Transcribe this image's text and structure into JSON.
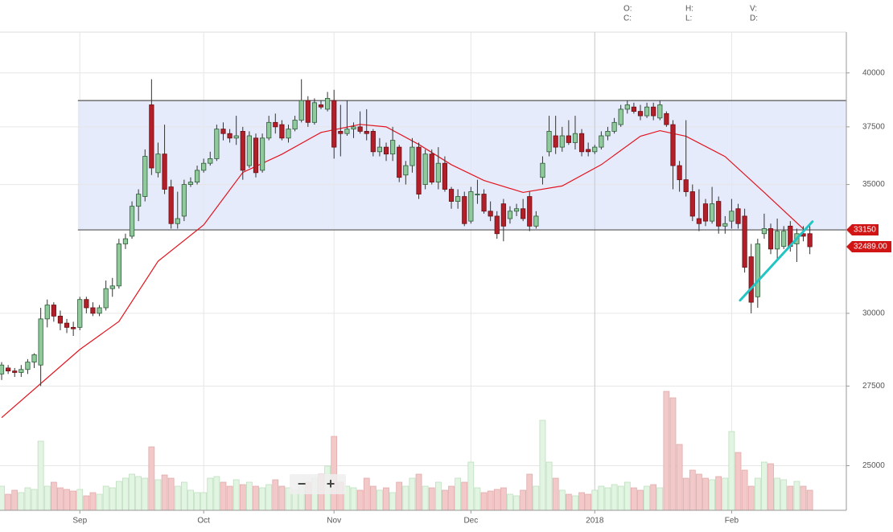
{
  "chart_data": {
    "type": "candlestick",
    "ohlc_header": [
      "O:",
      "H:",
      "V:",
      "C:",
      "L:",
      "D:"
    ],
    "zoom_controls": [
      "−",
      "+"
    ],
    "log_scale": true,
    "grid": true,
    "ylim": [
      23700,
      42000
    ],
    "yticks": [
      25000,
      27500,
      30000,
      35000,
      37500,
      40000
    ],
    "xlim": [
      -0.25,
      129.6
    ],
    "categories": [
      null,
      null,
      null,
      null,
      null,
      null,
      null,
      null,
      null,
      null,
      null,
      null,
      "Sep",
      null,
      null,
      null,
      null,
      null,
      null,
      null,
      null,
      null,
      null,
      null,
      null,
      null,
      null,
      null,
      null,
      null,
      null,
      "Oct",
      null,
      null,
      null,
      null,
      null,
      null,
      null,
      null,
      null,
      null,
      null,
      null,
      null,
      null,
      null,
      null,
      null,
      null,
      null,
      "Nov",
      null,
      null,
      null,
      null,
      null,
      null,
      null,
      null,
      null,
      null,
      null,
      null,
      null,
      null,
      null,
      null,
      null,
      null,
      null,
      null,
      "Dec",
      null,
      null,
      null,
      null,
      null,
      null,
      null,
      null,
      null,
      null,
      null,
      null,
      null,
      null,
      null,
      null,
      null,
      null,
      "2018",
      null,
      null,
      null,
      null,
      null,
      null,
      null,
      null,
      null,
      null,
      null,
      null,
      null,
      null,
      null,
      null,
      null,
      null,
      null,
      null,
      "Feb",
      null,
      null,
      null,
      null,
      null,
      null,
      null,
      null,
      null,
      null,
      null,
      null
    ],
    "open": [
      27900,
      28100,
      28000,
      27950,
      28050,
      28300,
      28200,
      29800,
      30300,
      29900,
      29650,
      29500,
      29500,
      30500,
      30200,
      30000,
      30200,
      30900,
      31000,
      32600,
      32900,
      34100,
      34500,
      38500,
      35500,
      36300,
      34900,
      33400,
      33700,
      35000,
      35100,
      35600,
      35900,
      36100,
      37400,
      37200,
      37000,
      37300,
      35800,
      37000,
      35600,
      37000,
      37700,
      37600,
      37000,
      37400,
      37800,
      38700,
      37700,
      38500,
      38300,
      38700,
      37300,
      37200,
      37400,
      37500,
      37300,
      37300,
      36400,
      36600,
      36300,
      36600,
      35400,
      35800,
      36600,
      35000,
      36300,
      35100,
      35900,
      34800,
      34300,
      34500,
      33500,
      34600,
      34600,
      33900,
      33700,
      34200,
      33600,
      33900,
      34000,
      34500,
      33300,
      35300,
      36400,
      37100,
      36600,
      37100,
      36800,
      37200,
      36500,
      36400,
      36600,
      37100,
      37300,
      37600,
      38300,
      38400,
      38200,
      38000,
      38400,
      37900,
      38100,
      37600,
      35800,
      35200,
      34700,
      33600,
      34200,
      33500,
      34300,
      33300,
      33500,
      34000,
      33700,
      32100,
      30600,
      33000,
      33200,
      32400,
      32500,
      33300,
      32600,
      33000,
      33000
    ],
    "high": [
      28300,
      28200,
      28100,
      28200,
      28400,
      28600,
      30200,
      30500,
      30400,
      30100,
      29800,
      29700,
      30600,
      30600,
      30400,
      30300,
      31200,
      31300,
      32800,
      33000,
      34300,
      34800,
      36500,
      39700,
      36800,
      37600,
      35200,
      34700,
      35200,
      35300,
      35800,
      36100,
      36400,
      37600,
      37700,
      37400,
      38000,
      37500,
      37300,
      37200,
      37200,
      38000,
      38100,
      37800,
      37600,
      38000,
      39700,
      38900,
      38800,
      38700,
      39100,
      39200,
      38500,
      38700,
      37700,
      38200,
      38300,
      37400,
      37000,
      36800,
      37500,
      36700,
      36000,
      37000,
      36800,
      36500,
      36500,
      36600,
      36200,
      34900,
      34800,
      34700,
      34900,
      35200,
      34800,
      34300,
      33900,
      34400,
      34100,
      34200,
      34400,
      34700,
      33900,
      36200,
      38000,
      38000,
      37500,
      37800,
      38000,
      37400,
      36800,
      36700,
      37300,
      37500,
      37900,
      38500,
      38700,
      38600,
      38500,
      38600,
      38600,
      38700,
      38200,
      37800,
      36000,
      37800,
      35000,
      34800,
      34400,
      34900,
      34500,
      33700,
      34400,
      34200,
      34000,
      32600,
      32800,
      33800,
      33400,
      33600,
      33300,
      33500,
      33200,
      33300,
      33300
    ],
    "low": [
      27700,
      27900,
      27800,
      27800,
      27900,
      28100,
      27500,
      29500,
      29700,
      29400,
      29300,
      29200,
      29400,
      30000,
      29900,
      29900,
      30100,
      30600,
      30900,
      32400,
      32800,
      33500,
      34300,
      35400,
      35300,
      34600,
      33200,
      33200,
      33500,
      34900,
      35000,
      35500,
      35800,
      36000,
      36900,
      36800,
      36700,
      35200,
      35700,
      35300,
      35500,
      36900,
      37200,
      36900,
      36800,
      37300,
      37700,
      37500,
      37600,
      38300,
      38200,
      36100,
      36200,
      37100,
      37000,
      37200,
      36900,
      36200,
      36200,
      36000,
      36000,
      35100,
      35000,
      35500,
      34400,
      34800,
      35000,
      34800,
      34700,
      34000,
      34000,
      33300,
      33400,
      34200,
      33800,
      33500,
      32800,
      32700,
      33400,
      33700,
      33500,
      33100,
      33200,
      35000,
      36200,
      36300,
      36400,
      36700,
      36500,
      36200,
      36200,
      36300,
      36500,
      36900,
      37200,
      37500,
      38100,
      38100,
      37800,
      37900,
      37800,
      37800,
      37500,
      34800,
      34700,
      34500,
      33500,
      33100,
      33300,
      33400,
      33000,
      33000,
      33200,
      33200,
      31500,
      30000,
      30200,
      32800,
      32200,
      32000,
      32400,
      32300,
      31900,
      32700,
      32200
    ],
    "close": [
      28200,
      28000,
      27950,
      28050,
      28300,
      28550,
      29800,
      30300,
      29900,
      29650,
      29500,
      29450,
      30500,
      30200,
      30000,
      30200,
      30900,
      31000,
      32600,
      32800,
      34100,
      34600,
      36200,
      35700,
      36300,
      34800,
      33400,
      33600,
      35000,
      35100,
      35600,
      35900,
      36100,
      37400,
      37200,
      37000,
      37100,
      35600,
      37100,
      35500,
      37000,
      37700,
      37500,
      37000,
      37400,
      37800,
      38700,
      37700,
      38600,
      38400,
      38800,
      36600,
      37200,
      37400,
      37500,
      37300,
      37200,
      36400,
      36600,
      36300,
      36900,
      35300,
      35800,
      36600,
      34600,
      36300,
      35100,
      35900,
      34800,
      34300,
      34500,
      33400,
      34700,
      34600,
      33900,
      33700,
      33000,
      33300,
      33900,
      34000,
      33600,
      33300,
      33700,
      35900,
      37300,
      36600,
      37100,
      36800,
      37200,
      36400,
      36400,
      36600,
      37100,
      37300,
      37700,
      38300,
      38500,
      38200,
      38000,
      38400,
      38000,
      38500,
      37600,
      35800,
      35200,
      34700,
      33700,
      33400,
      33500,
      34200,
      33300,
      33400,
      33900,
      33400,
      31700,
      30400,
      32600,
      33200,
      32400,
      33100,
      33100,
      32500,
      33000,
      32900,
      32489
    ],
    "volume": [
      30,
      20,
      25,
      22,
      28,
      26,
      86,
      30,
      35,
      28,
      26,
      24,
      26,
      18,
      22,
      20,
      30,
      28,
      36,
      40,
      45,
      42,
      40,
      79,
      38,
      44,
      40,
      30,
      35,
      25,
      22,
      22,
      40,
      42,
      35,
      30,
      38,
      32,
      35,
      30,
      28,
      32,
      38,
      30,
      28,
      25,
      30,
      35,
      40,
      45,
      55,
      92,
      35,
      30,
      28,
      25,
      40,
      30,
      25,
      28,
      22,
      35,
      30,
      40,
      45,
      30,
      28,
      35,
      25,
      30,
      40,
      35,
      60,
      28,
      22,
      24,
      26,
      28,
      20,
      18,
      25,
      45,
      30,
      112,
      60,
      40,
      25,
      20,
      18,
      22,
      20,
      25,
      30,
      28,
      32,
      30,
      35,
      28,
      25,
      30,
      32,
      28,
      148,
      140,
      82,
      40,
      50,
      45,
      40,
      38,
      42,
      40,
      98,
      72,
      50,
      30,
      40,
      60,
      58,
      40,
      38,
      30,
      36,
      30,
      25
    ],
    "moving_average": {
      "color": "#e3141e",
      "x": [
        0,
        12,
        18,
        24,
        31,
        37,
        43,
        49,
        55,
        59,
        64,
        69,
        74,
        80,
        86,
        92,
        98,
        101,
        105,
        111,
        117,
        123
      ],
      "values": [
        26480,
        28730,
        29710,
        31930,
        33350,
        35510,
        36290,
        37250,
        37610,
        37500,
        36720,
        35840,
        35170,
        34670,
        34940,
        35840,
        37080,
        37330,
        37080,
        36190,
        34670,
        33190
      ]
    },
    "range_box": {
      "x_start": 11.7,
      "levels": [
        38700,
        33150
      ],
      "color": "#e6ebfb"
    },
    "trendline": {
      "color": "#22c4c4",
      "x": [
        113.3,
        124.4
      ],
      "values": [
        30470,
        33480
      ]
    },
    "last_price_label": "32489.00",
    "up_color": "#8fc99c",
    "down_color": "#b31f29"
  }
}
